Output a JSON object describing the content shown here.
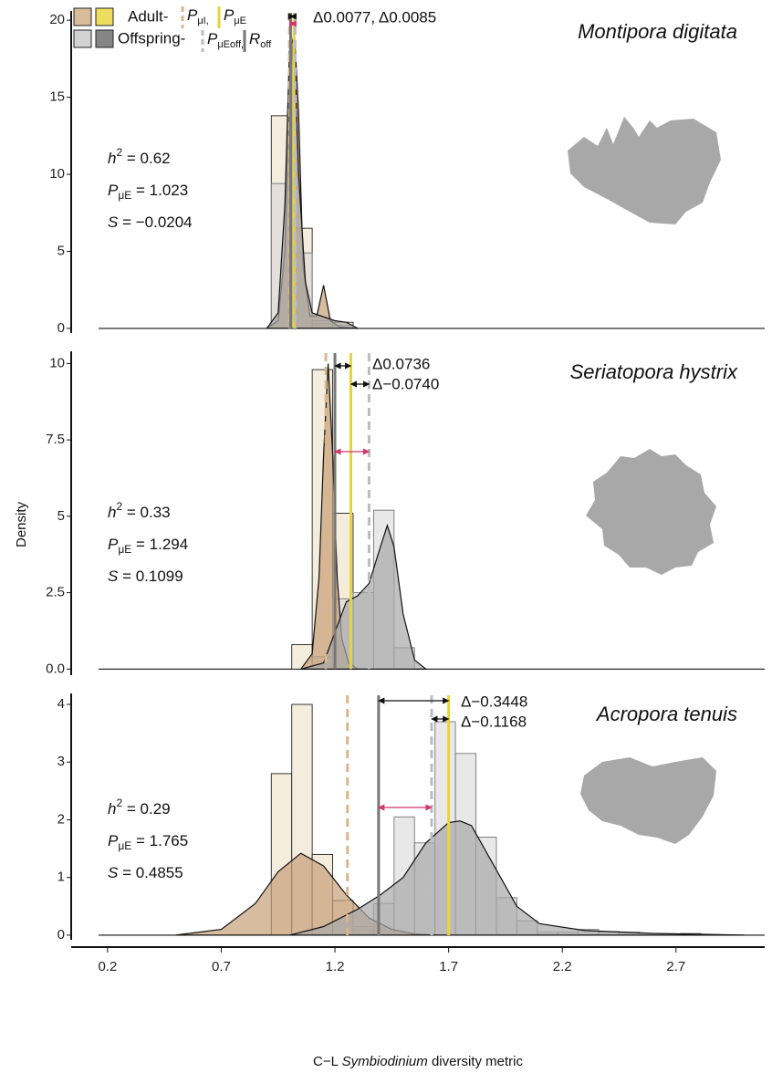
{
  "chart_data": [
    {
      "type": "histogram",
      "title": "Montipora digitata",
      "xlim": [
        0.04,
        3.09
      ],
      "ylim": [
        -0.3,
        20.6
      ],
      "yticks": [
        0,
        5,
        10,
        15,
        20
      ],
      "bins": [
        0.92,
        1.01,
        1.1,
        1.19,
        1.28
      ],
      "series": [
        {
          "color": "#f4ecdd",
          "values": [
            13.8,
            6.5,
            0.5,
            0.4
          ]
        },
        {
          "color": "#d6d6d6",
          "values": [
            9.4,
            4.9,
            0.3,
            0.2
          ]
        }
      ],
      "density": [
        {
          "color": "#c6a078",
          "x": [
            0.9,
            0.95,
            0.98,
            1.0,
            1.02,
            1.04,
            1.06,
            1.09,
            1.12,
            1.15,
            1.18,
            1.22,
            1.3
          ],
          "values": [
            0,
            0.5,
            5,
            15,
            19.7,
            14,
            4,
            0.8,
            0.8,
            2.8,
            0.5,
            0.1,
            0
          ]
        },
        {
          "color": "#a8a8a8",
          "x": [
            0.9,
            0.95,
            0.98,
            1.0,
            1.02,
            1.04,
            1.07,
            1.1,
            1.2,
            1.25,
            1.3
          ],
          "values": [
            0,
            1,
            8,
            18,
            19,
            10,
            3,
            1,
            0.5,
            0.4,
            0
          ]
        }
      ],
      "ref_lines": [
        1.0,
        1.02,
        1.025,
        1.005
      ],
      "stats": [
        {
          "symbol": "h",
          "sup": "2",
          "text": " = 0.62"
        },
        {
          "symbol": "P",
          "sub": "μE",
          "text": " = 1.023"
        },
        {
          "symbol": "S",
          "text": " = −0.0204"
        }
      ],
      "deltas": [
        "Δ0.0077, Δ0.0085"
      ],
      "legend": {
        "groups": [
          {
            "name": "Adult-",
            "colors": [
              "#d8bd98",
              "#eedc5c"
            ]
          },
          {
            "name": "Offspring-",
            "colors": [
              "#d2d2d2",
              "#858585"
            ]
          }
        ],
        "lines": [
          {
            "symbol": "P",
            "sub": "μI,",
            "color": "#d9b78c",
            "dashed": true
          },
          {
            "symbol": "P",
            "sub": "μE",
            "color": "#e9d33c",
            "dashed": false
          },
          {
            "symbol": "P",
            "sub": "μEoff,",
            "color": "#bcbcbc",
            "dashed": true
          },
          {
            "symbol": "R",
            "sub": "off",
            "color": "#777777",
            "dashed": false
          }
        ]
      }
    },
    {
      "type": "histogram",
      "title": "Seriatopora hystrix",
      "ylabel": "Density",
      "xlim": [
        0.04,
        3.09
      ],
      "ylim": [
        -0.2,
        10.4
      ],
      "yticks": [
        {
          "value": 0,
          "label": "0.0"
        },
        2.5,
        5,
        7.5,
        10
      ],
      "bins": [
        0.92,
        1.01,
        1.1,
        1.19,
        1.28,
        1.37,
        1.46,
        1.55
      ],
      "series": [
        {
          "color": "#f4ecdd",
          "values": [
            0,
            0.8,
            9.8,
            5.1,
            0,
            0,
            0
          ]
        },
        {
          "color": "#d6d6d6",
          "values": [
            0,
            0,
            0.4,
            2.3,
            2.5,
            5.2,
            0.7
          ]
        }
      ],
      "density": [
        {
          "color": "#c6a078",
          "x": [
            1.05,
            1.1,
            1.13,
            1.15,
            1.17,
            1.19,
            1.21,
            1.23,
            1.26,
            1.3
          ],
          "values": [
            0,
            0.5,
            3,
            7,
            10,
            7,
            3,
            1,
            0.2,
            0
          ]
        },
        {
          "color": "#a8a8a8",
          "x": [
            1.05,
            1.15,
            1.2,
            1.25,
            1.3,
            1.35,
            1.4,
            1.43,
            1.46,
            1.5,
            1.55,
            1.6
          ],
          "values": [
            0,
            0.2,
            1.2,
            2.2,
            2.4,
            2.8,
            4.0,
            4.7,
            4.0,
            1.8,
            0.3,
            0
          ]
        }
      ],
      "ref_lines": [
        1.16,
        1.27,
        1.35,
        1.2
      ],
      "stats": [
        {
          "symbol": "h",
          "sup": "2",
          "text": " = 0.33"
        },
        {
          "symbol": "P",
          "sub": "μE",
          "text": " = 1.294"
        },
        {
          "symbol": "S",
          "text": " = 0.1099"
        }
      ],
      "deltas": [
        "Δ0.0736",
        "Δ−0.0740"
      ]
    },
    {
      "type": "histogram",
      "title": "Acropora tenuis",
      "xlim": [
        0.04,
        3.09
      ],
      "ylim": [
        -0.08,
        4.19
      ],
      "yticks": [
        0,
        1,
        2,
        3,
        4
      ],
      "xticks": [
        0.2,
        0.7,
        1.2,
        1.7,
        2.2,
        2.7
      ],
      "xlabel": [
        "C−L ",
        "Symbiodinium",
        " diversity metric"
      ],
      "bins": [
        0.92,
        1.01,
        1.1,
        1.19,
        1.28,
        1.37,
        1.46,
        1.55,
        1.64,
        1.73,
        1.82,
        1.91,
        2.0,
        2.09,
        2.18,
        2.27,
        2.36,
        2.45,
        2.54,
        2.63,
        2.72,
        2.81,
        2.9
      ],
      "series": [
        {
          "color": "#f4ecdd",
          "values": [
            2.8,
            4.0,
            1.4,
            0.6,
            0,
            0,
            0,
            0,
            0,
            0,
            0,
            0,
            0,
            0,
            0,
            0,
            0,
            0,
            0,
            0,
            0,
            0
          ]
        },
        {
          "color": "#d6d6d6",
          "values": [
            0,
            0,
            0,
            0,
            0.15,
            0.55,
            2.05,
            1.6,
            3.7,
            3.15,
            1.7,
            0.65,
            0.25,
            0.05,
            0.05,
            0.1,
            0.06,
            0.05,
            0,
            0,
            0.03,
            0
          ]
        }
      ],
      "density": [
        {
          "color": "#c6a078",
          "x": [
            0.5,
            0.7,
            0.85,
            0.95,
            1.05,
            1.15,
            1.25,
            1.35,
            1.45,
            1.55,
            1.65
          ],
          "values": [
            0,
            0.1,
            0.55,
            1.1,
            1.42,
            1.2,
            0.7,
            0.3,
            0.1,
            0.02,
            0
          ]
        },
        {
          "color": "#a8a8a8",
          "x": [
            1.0,
            1.15,
            1.3,
            1.4,
            1.5,
            1.6,
            1.7,
            1.75,
            1.8,
            1.9,
            2.0,
            2.1,
            2.3,
            2.6,
            3.0
          ],
          "values": [
            0,
            0.15,
            0.45,
            0.7,
            1.0,
            1.6,
            1.95,
            1.98,
            1.9,
            1.2,
            0.5,
            0.2,
            0.08,
            0.03,
            0
          ]
        }
      ],
      "ref_lines": [
        1.255,
        1.7,
        1.625,
        1.392
      ],
      "stats": [
        {
          "symbol": "h",
          "sup": "2",
          "text": " = 0.29"
        },
        {
          "symbol": "P",
          "sub": "μE",
          "text": " = 1.765"
        },
        {
          "symbol": "S",
          "text": " = 0.4855"
        }
      ],
      "deltas": [
        "Δ−0.3448",
        "Δ−0.1168"
      ]
    }
  ]
}
